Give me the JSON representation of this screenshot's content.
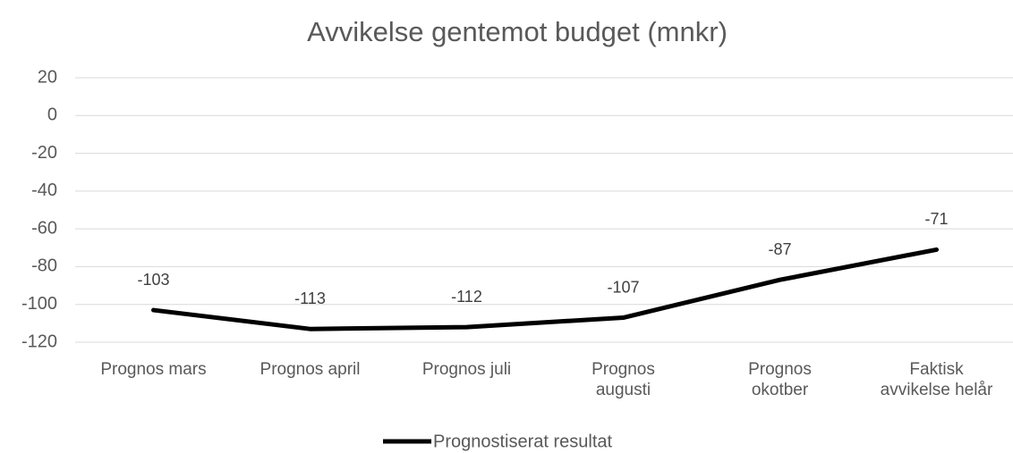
{
  "chart_data": {
    "type": "line",
    "title": "Avvikelse gentemot budget (mnkr)",
    "categories": [
      "Prognos mars",
      "Prognos april",
      "Prognos juli",
      "Prognos augusti",
      "Prognos okotber",
      "Faktisk avvikelse helår"
    ],
    "series": [
      {
        "name": "Prognostiserat resultat",
        "color": "#000000",
        "values": [
          -103,
          -113,
          -112,
          -107,
          -87,
          -71
        ]
      }
    ],
    "ylim": [
      -120,
      20
    ],
    "yticks": [
      -120,
      -100,
      -80,
      -60,
      -40,
      -20,
      0,
      20
    ],
    "grid": true,
    "legend": "bottom"
  }
}
